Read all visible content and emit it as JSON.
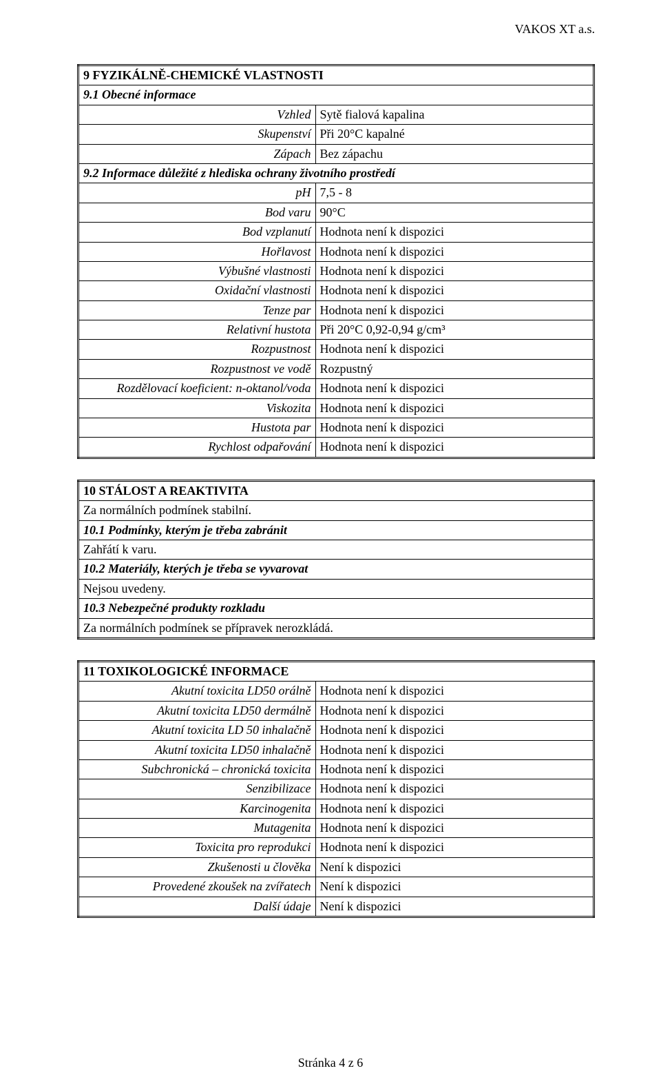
{
  "header": {
    "company": "VAKOS XT a.s."
  },
  "section9": {
    "title": "9   FYZIKÁLNĚ-CHEMICKÉ VLASTNOSTI",
    "sub1": "9.1  Obecné informace",
    "rows1": [
      {
        "label": "Vzhled",
        "value": "Sytě fialová kapalina"
      },
      {
        "label": "Skupenství",
        "value": "Při 20°C kapalné"
      },
      {
        "label": "Zápach",
        "value": "Bez zápachu"
      }
    ],
    "sub2": "9.2  Informace důležité z hlediska ochrany životního prostředí",
    "rows2": [
      {
        "label": "pH",
        "value": "7,5 - 8"
      },
      {
        "label": "Bod varu",
        "value": "90°C"
      },
      {
        "label": "Bod vzplanutí",
        "value": "Hodnota není k dispozici"
      },
      {
        "label": "Hořlavost",
        "value": "Hodnota není k dispozici"
      },
      {
        "label": "Výbušné vlastnosti",
        "value": "Hodnota není k dispozici"
      },
      {
        "label": "Oxidační vlastnosti",
        "value": "Hodnota není k dispozici"
      },
      {
        "label": "Tenze par",
        "value": "Hodnota není k dispozici"
      },
      {
        "label": "Relativní hustota",
        "value": "Při 20°C 0,92-0,94 g/cm³"
      },
      {
        "label": "Rozpustnost",
        "value": "Hodnota není k dispozici"
      },
      {
        "label": "Rozpustnost ve vodě",
        "value": "Rozpustný"
      },
      {
        "label": "Rozdělovací koeficient: n-oktanol/voda",
        "value": "Hodnota není k dispozici"
      },
      {
        "label": "Viskozita",
        "value": "Hodnota není k dispozici"
      },
      {
        "label": "Hustota par",
        "value": "Hodnota není k dispozici"
      },
      {
        "label": "Rychlost odpařování",
        "value": "Hodnota není k dispozici"
      }
    ]
  },
  "section10": {
    "title": "10  STÁLOST A REAKTIVITA",
    "line1": "Za normálních podmínek stabilní.",
    "sub1": "10.1 Podmínky, kterým je třeba zabránit",
    "line2": "Zahřátí k varu.",
    "sub2": "10.2 Materiály, kterých je třeba se vyvarovat",
    "line3": "Nejsou uvedeny.",
    "sub3": "10.3 Nebezpečné produkty rozkladu",
    "line4": "Za normálních podmínek se přípravek nerozkládá."
  },
  "section11": {
    "title": "11  TOXIKOLOGICKÉ INFORMACE",
    "rows": [
      {
        "label": "Akutní toxicita LD50 orálně",
        "value": "Hodnota není k dispozici"
      },
      {
        "label": "Akutní toxicita LD50 dermálně",
        "value": "Hodnota není k dispozici"
      },
      {
        "label": "Akutní toxicita LD 50 inhalačně",
        "value": "Hodnota není k dispozici"
      },
      {
        "label": "Akutní toxicita LD50 inhalačně",
        "value": "Hodnota není k dispozici"
      },
      {
        "label": "Subchronická – chronická toxicita",
        "value": "Hodnota není k dispozici"
      },
      {
        "label": "Senzibilizace",
        "value": "Hodnota není k dispozici"
      },
      {
        "label": "Karcinogenita",
        "value": "Hodnota není k dispozici"
      },
      {
        "label": "Mutagenita",
        "value": "Hodnota není k dispozici"
      },
      {
        "label": "Toxicita pro reprodukci",
        "value": "Hodnota není k dispozici"
      },
      {
        "label": "Zkušenosti u člověka",
        "value": "Není k dispozici"
      },
      {
        "label": "Provedené zkoušek na zvířatech",
        "value": "Není k dispozici"
      },
      {
        "label": "Další údaje",
        "value": "Není k dispozici"
      }
    ]
  },
  "footer": {
    "text": "Stránka 4 z 6"
  }
}
